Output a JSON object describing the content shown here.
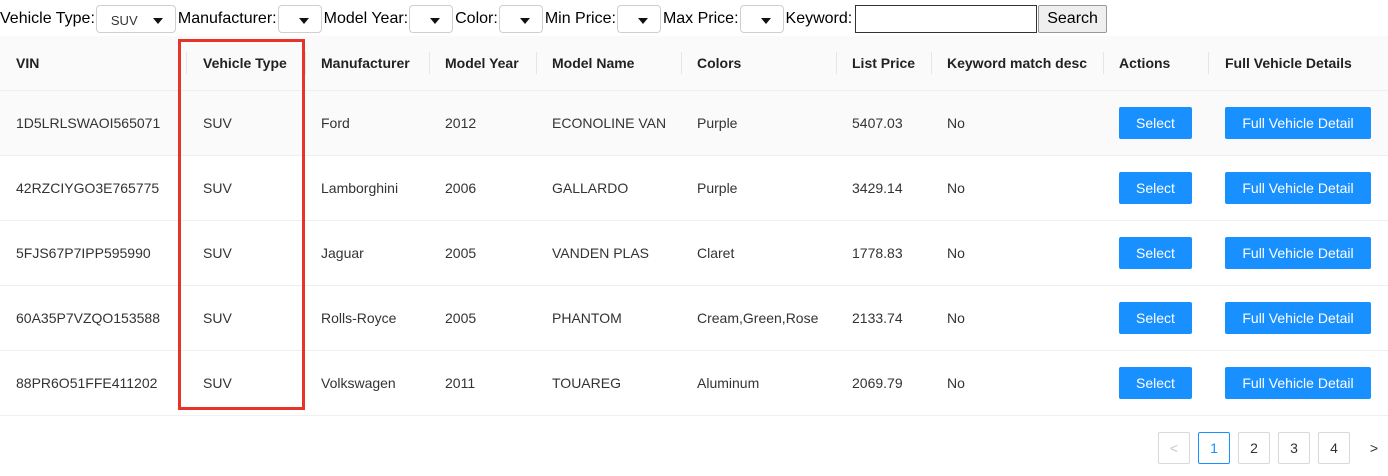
{
  "filters": {
    "vehicle_type": {
      "label": "Vehicle Type:",
      "value": "SUV"
    },
    "manufacturer": {
      "label": "Manufacturer:",
      "value": ""
    },
    "model_year": {
      "label": "Model Year:",
      "value": ""
    },
    "color": {
      "label": "Color:",
      "value": ""
    },
    "min_price": {
      "label": "Min Price:",
      "value": ""
    },
    "max_price": {
      "label": "Max Price:",
      "value": ""
    },
    "keyword": {
      "label": "Keyword:",
      "value": ""
    },
    "search_label": "Search"
  },
  "table": {
    "columns": [
      "VIN",
      "Vehicle Type",
      "Manufacturer",
      "Model Year",
      "Model Name",
      "Colors",
      "List Price",
      "Keyword match desc",
      "Actions",
      "Full Vehicle Details"
    ],
    "select_label": "Select",
    "details_label": "Full Vehicle Detail",
    "rows": [
      [
        "1D5LRLSWAOI565071",
        "SUV",
        "Ford",
        "2012",
        "ECONOLINE VAN",
        "Purple",
        "5407.03",
        "No"
      ],
      [
        "42RZCIYGO3E765775",
        "SUV",
        "Lamborghini",
        "2006",
        "GALLARDO",
        "Purple",
        "3429.14",
        "No"
      ],
      [
        "5FJS67P7IPP595990",
        "SUV",
        "Jaguar",
        "2005",
        "VANDEN PLAS",
        "Claret",
        "1778.83",
        "No"
      ],
      [
        "60A35P7VZQO153588",
        "SUV",
        "Rolls-Royce",
        "2005",
        "PHANTOM",
        "Cream,Green,Rose",
        "2133.74",
        "No"
      ],
      [
        "88PR6O51FFE411202",
        "SUV",
        "Volkswagen",
        "2011",
        "TOUAREG",
        "Aluminum",
        "2069.79",
        "No"
      ]
    ]
  },
  "pagination": {
    "prev": "<",
    "pages": [
      "1",
      "2",
      "3",
      "4"
    ],
    "next": ">",
    "current": "1"
  },
  "colors": {
    "accent": "#1890ff",
    "highlight": "#e8332b"
  }
}
